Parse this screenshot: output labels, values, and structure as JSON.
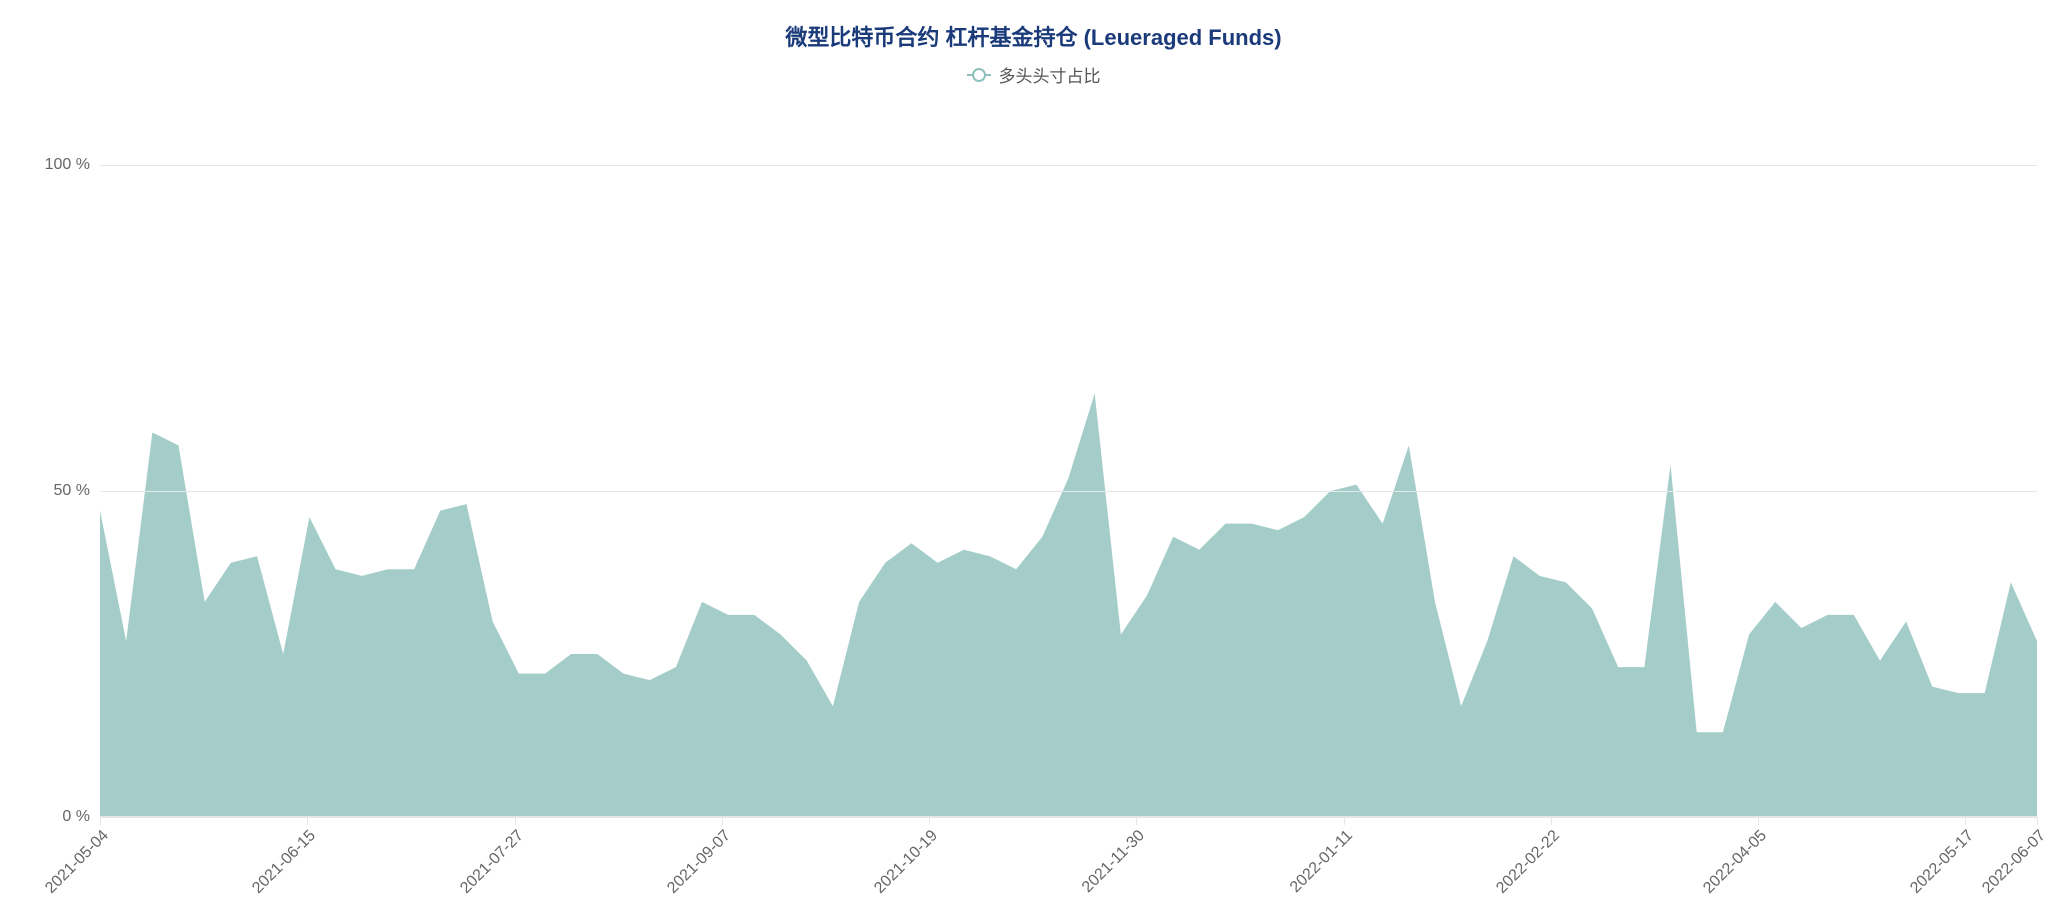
{
  "chart": {
    "type": "area",
    "title": "微型比特币合约 杠杆基金持仓 (Leueraged Funds)",
    "title_color": "#1a3a7a",
    "title_fontsize": 22,
    "legend_label": "多头头寸占比",
    "legend_fontsize": 17,
    "legend_text_color": "#555555",
    "background_color": "#ffffff",
    "series_color": "#94c4c0",
    "fill_opacity": 0.85,
    "line_width": 0,
    "y_axis": {
      "min": 0,
      "max": 110,
      "ticks": [
        0,
        50,
        100
      ],
      "tick_labels": [
        "0 %",
        "50 %",
        "100 %"
      ],
      "label_color": "#666666",
      "label_fontsize": 16,
      "grid_color": "#e6e6e6"
    },
    "x_axis": {
      "labels": [
        "2021-05-04",
        "2021-06-15",
        "2021-07-27",
        "2021-09-07",
        "2021-10-19",
        "2021-11-30",
        "2022-01-11",
        "2022-02-22",
        "2022-04-05",
        "2022-05-17",
        "2022-06-07"
      ],
      "label_positions": [
        0,
        10.7,
        21.4,
        32.1,
        42.8,
        53.5,
        64.2,
        74.9,
        85.6,
        96.3,
        100
      ],
      "label_color": "#666666",
      "label_fontsize": 16,
      "rotation": -45
    },
    "data": [
      47,
      27,
      59,
      57,
      33,
      39,
      40,
      25,
      46,
      38,
      37,
      38,
      38,
      47,
      48,
      30,
      22,
      22,
      25,
      25,
      22,
      21,
      23,
      33,
      31,
      31,
      28,
      24,
      17,
      33,
      39,
      42,
      39,
      41,
      40,
      38,
      43,
      52,
      65,
      28,
      34,
      43,
      41,
      45,
      45,
      44,
      46,
      50,
      51,
      45,
      57,
      33,
      17,
      27,
      40,
      37,
      36,
      32,
      23,
      23,
      54,
      13,
      13,
      28,
      33,
      29,
      31,
      31,
      24,
      30,
      20,
      19,
      19,
      36,
      27
    ]
  }
}
